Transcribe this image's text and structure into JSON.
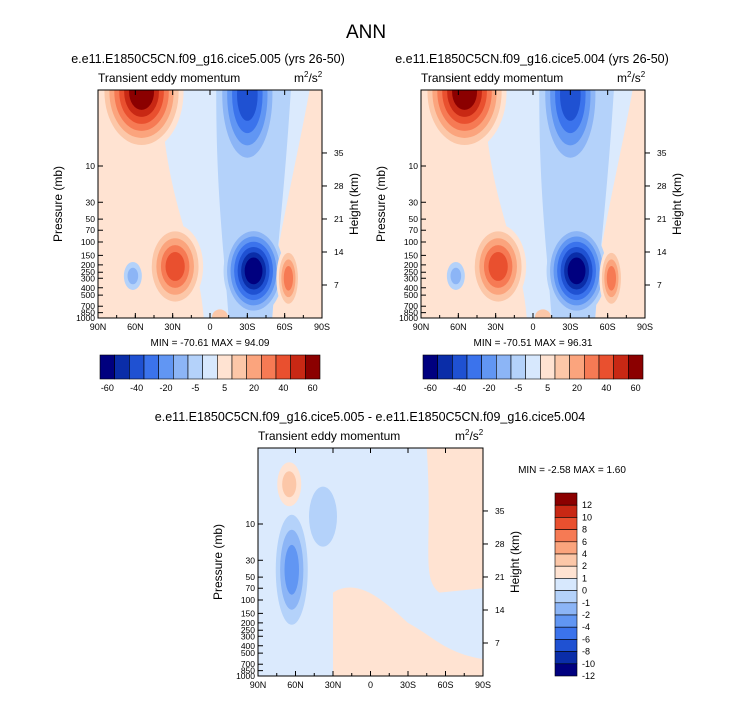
{
  "page": {
    "title": "ANN"
  },
  "chart_data": [
    {
      "type": "heatmap",
      "title": "e.e11.E1850C5CN.f09_g16.cice5.005 (yrs 26-50)",
      "subtitle": "Transient eddy momentum",
      "units": "m²/s²",
      "units_base": "m",
      "units_mid": "2",
      "units_slash": "/s",
      "units_exp": "2",
      "xlabel": "",
      "ylabel": "Pressure (mb)",
      "ylabel_right": "Height (km)",
      "x_ticks": [
        "90N",
        "60N",
        "30N",
        "0",
        "30S",
        "60S",
        "90S"
      ],
      "y_ticks": [
        "10",
        "30",
        "50",
        "70",
        "100",
        "150",
        "200",
        "250",
        "300",
        "400",
        "500",
        "700",
        "850",
        "1000"
      ],
      "y_ticks_right": [
        "35",
        "28",
        "21",
        "14",
        "7"
      ],
      "stats_text": "MIN = -70.61   MAX = 94.09",
      "min": -70.61,
      "max": 94.09,
      "field": [
        {
          "lat": 57,
          "p": 3,
          "value": 75
        },
        {
          "lat": 25,
          "p": 200,
          "value": 40
        },
        {
          "lat": -28,
          "p": 12,
          "value": -45
        },
        {
          "lat": -35,
          "p": 250,
          "value": -60
        },
        {
          "lat": 65,
          "p": 300,
          "value": -5
        },
        {
          "lat": -65,
          "p": 300,
          "value": 20
        }
      ],
      "colorbar": {
        "labels": [
          "-60",
          "-40",
          "-20",
          "-5",
          "5",
          "20",
          "40",
          "60"
        ]
      }
    },
    {
      "type": "heatmap",
      "title": "e.e11.E1850C5CN.f09_g16.cice5.004 (yrs 26-50)",
      "subtitle": "Transient eddy momentum",
      "units": "m²/s²",
      "units_base": "m",
      "units_mid": "2",
      "units_slash": "/s",
      "units_exp": "2",
      "xlabel": "",
      "ylabel": "Pressure (mb)",
      "ylabel_right": "Height (km)",
      "x_ticks": [
        "90N",
        "60N",
        "30N",
        "0",
        "30S",
        "60S",
        "90S"
      ],
      "y_ticks": [
        "10",
        "30",
        "50",
        "70",
        "100",
        "150",
        "200",
        "250",
        "300",
        "400",
        "500",
        "700",
        "850",
        "1000"
      ],
      "y_ticks_right": [
        "35",
        "28",
        "21",
        "14",
        "7"
      ],
      "stats_text": "MIN = -70.51   MAX = 96.31",
      "min": -70.51,
      "max": 96.31,
      "field": [
        {
          "lat": 57,
          "p": 3,
          "value": 77
        },
        {
          "lat": 25,
          "p": 200,
          "value": 40
        },
        {
          "lat": -28,
          "p": 12,
          "value": -45
        },
        {
          "lat": -35,
          "p": 250,
          "value": -60
        },
        {
          "lat": 65,
          "p": 300,
          "value": -5
        },
        {
          "lat": -65,
          "p": 300,
          "value": 20
        }
      ],
      "colorbar": {
        "labels": [
          "-60",
          "-40",
          "-20",
          "-5",
          "5",
          "20",
          "40",
          "60"
        ]
      }
    },
    {
      "type": "heatmap",
      "title": "e.e11.E1850C5CN.f09_g16.cice5.005 - e.e11.E1850C5CN.f09_g16.cice5.004",
      "subtitle": "Transient eddy momentum",
      "units": "m²/s²",
      "units_base": "m",
      "units_mid": "2",
      "units_slash": "/s",
      "units_exp": "2",
      "xlabel": "",
      "ylabel": "Pressure (mb)",
      "ylabel_right": "Height (km)",
      "x_ticks": [
        "90N",
        "60N",
        "30N",
        "0",
        "30S",
        "60S",
        "90S"
      ],
      "y_ticks": [
        "10",
        "30",
        "50",
        "70",
        "100",
        "150",
        "200",
        "250",
        "300",
        "400",
        "500",
        "700",
        "850",
        "1000"
      ],
      "y_ticks_right": [
        "35",
        "28",
        "21",
        "14",
        "7"
      ],
      "stats_text": "MIN =  -2.58   MAX =   1.60",
      "min": -2.58,
      "max": 1.6,
      "field": [
        {
          "lat": 62,
          "p": 35,
          "value": -2.5
        },
        {
          "lat": 58,
          "p": 2,
          "value": 1.5
        },
        {
          "lat": 40,
          "p": 3,
          "value": -1
        }
      ],
      "colorbar": {
        "labels": [
          "12",
          "10",
          "8",
          "6",
          "4",
          "2",
          "1",
          "0",
          "-1",
          "-2",
          "-4",
          "-6",
          "-8",
          "-10",
          "-12"
        ]
      }
    }
  ],
  "colors": {
    "scale_a": [
      "#00007f",
      "#0a2da8",
      "#1f51d2",
      "#3b73ec",
      "#6196f3",
      "#8cb5f6",
      "#b4d2fa",
      "#d7e8fd",
      "#ffe3d2",
      "#fcc7a8",
      "#fba47d",
      "#f67a54",
      "#e9502f",
      "#c82814",
      "#8b0000"
    ],
    "scale_b": [
      "#00007f",
      "#0a2da8",
      "#1f51d2",
      "#3b73ec",
      "#6196f3",
      "#8cb5f6",
      "#b4d2fa",
      "#d7e8fd",
      "#ffe3d2",
      "#fcc7a8",
      "#fba47d",
      "#f67a54",
      "#e9502f",
      "#c82814",
      "#8b0000"
    ]
  }
}
